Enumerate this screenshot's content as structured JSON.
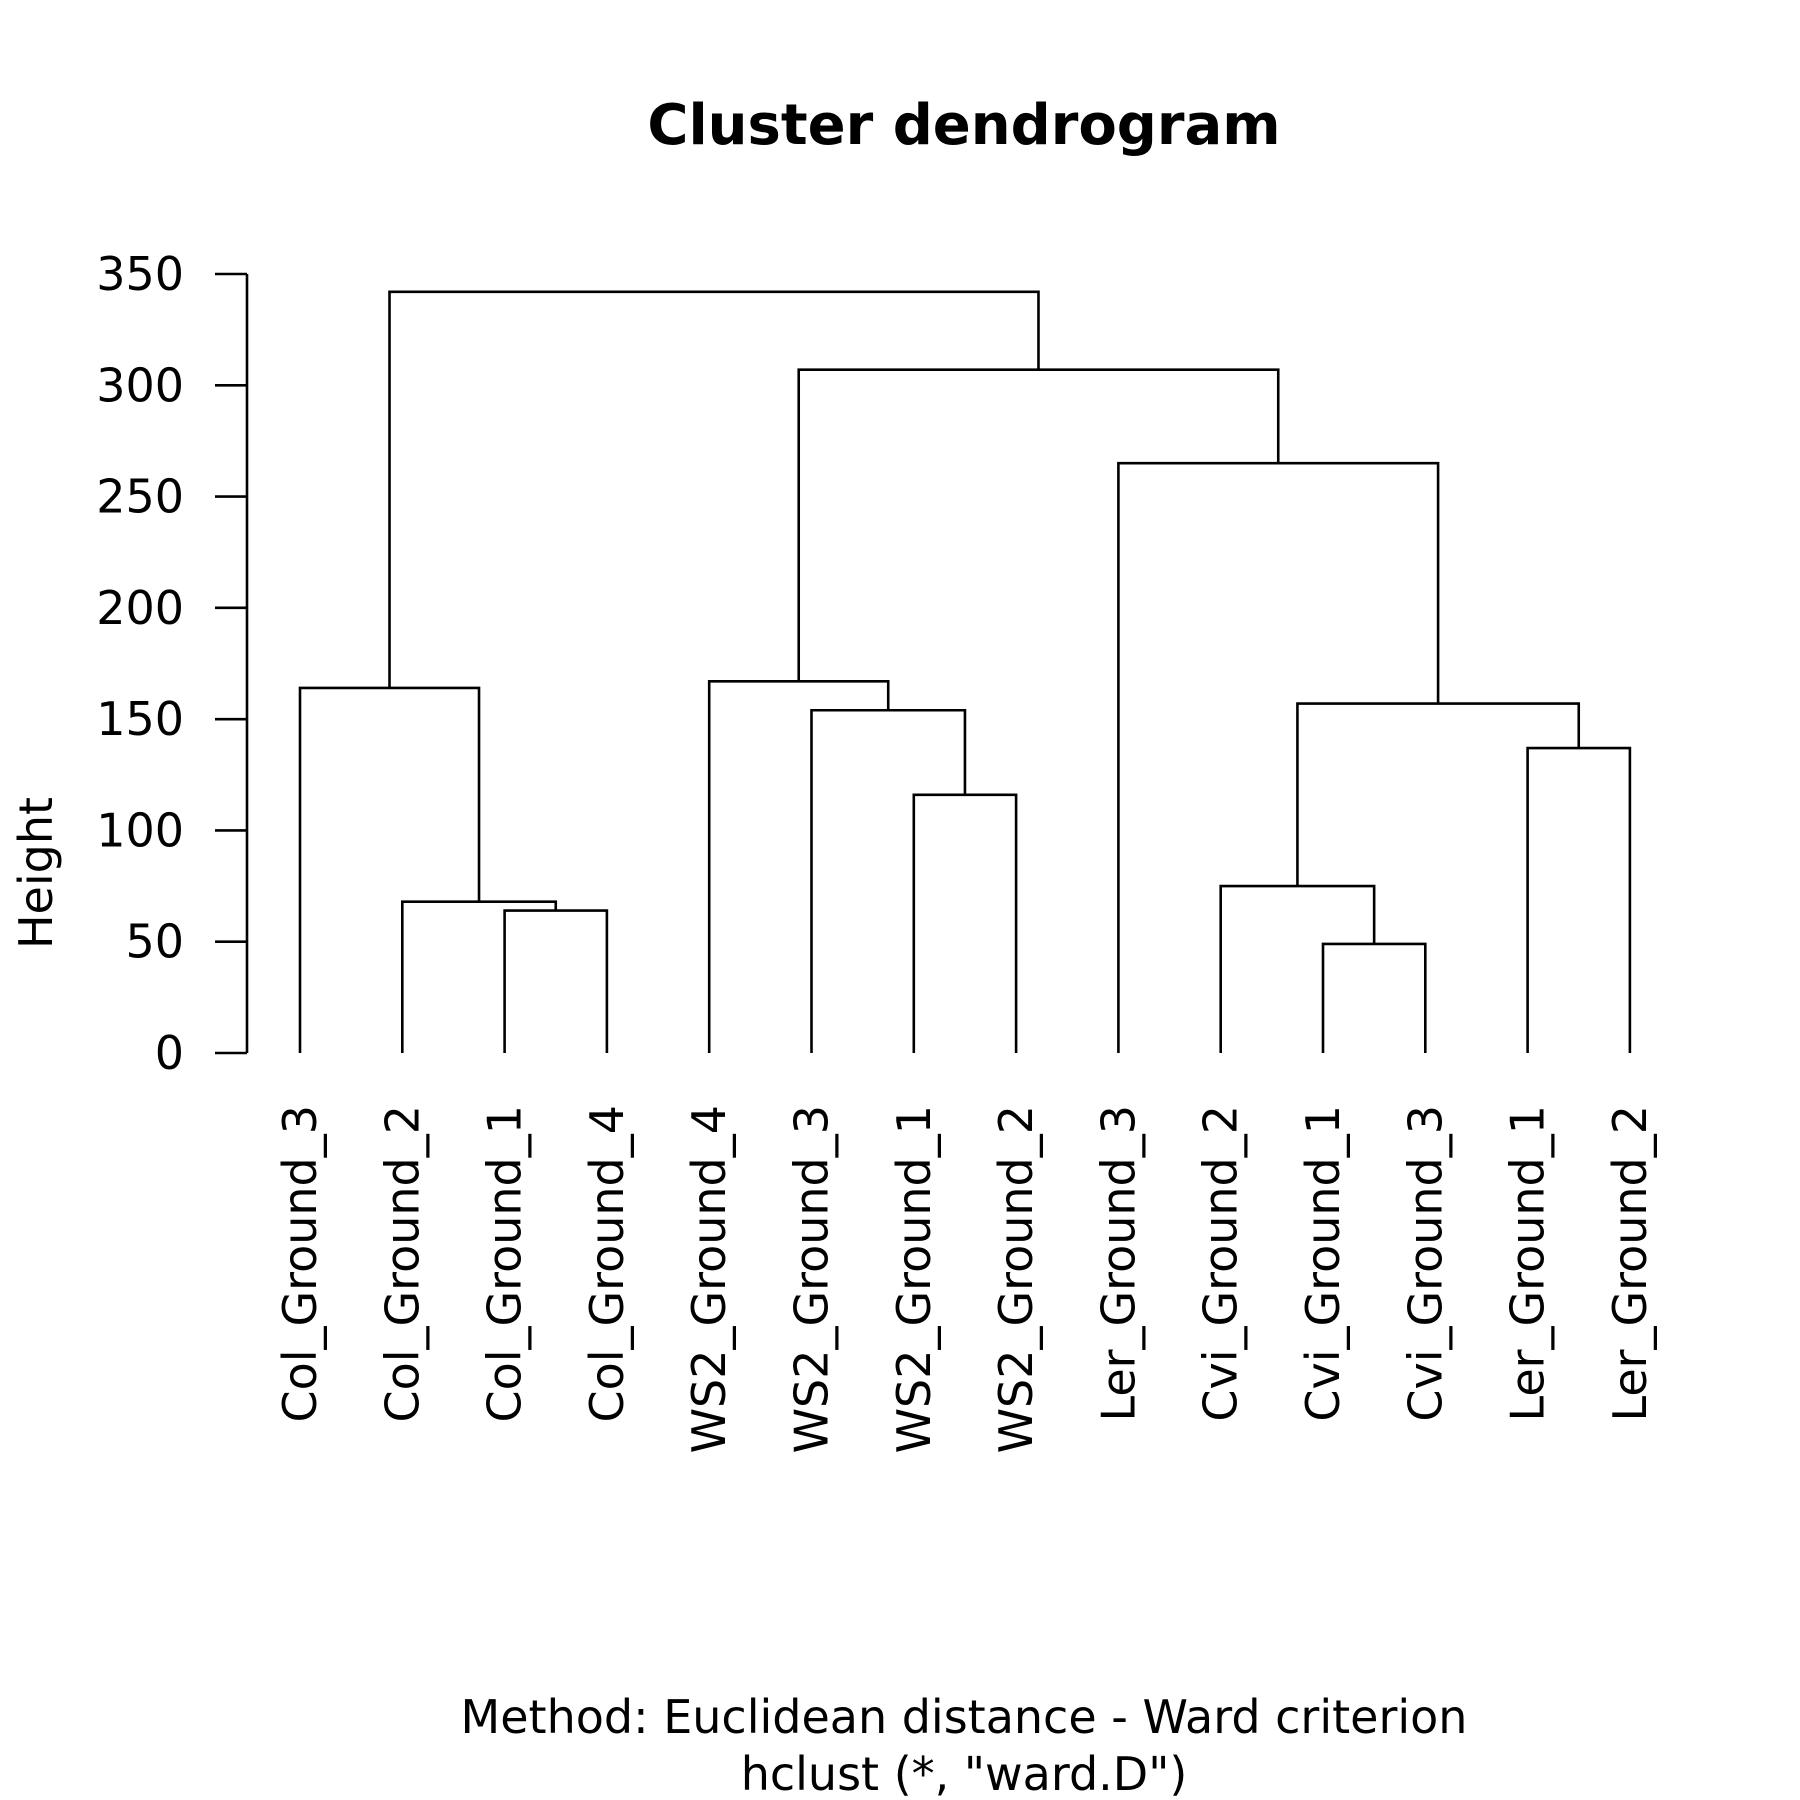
{
  "chart_data": {
    "type": "dendrogram",
    "title": "Cluster dendrogram",
    "ylabel": "Height",
    "xlabel": "Method: Euclidean distance - Ward criterion",
    "sub": "hclust (*, \"ward.D\")",
    "ylim": [
      0,
      350
    ],
    "yticks": [
      0,
      50,
      100,
      150,
      200,
      250,
      300,
      350
    ],
    "leaves": [
      "Col_Ground_3",
      "Col_Ground_2",
      "Col_Ground_1",
      "Col_Ground_4",
      "WS2_Ground_4",
      "WS2_Ground_3",
      "WS2_Ground_1",
      "WS2_Ground_2",
      "Ler_Ground_3",
      "Cvi_Ground_2",
      "Cvi_Ground_1",
      "Cvi_Ground_3",
      "Ler_Ground_1",
      "Ler_Ground_2"
    ],
    "merges": [
      {
        "id": "m1",
        "left": "Cvi_Ground_1",
        "right": "Cvi_Ground_3",
        "height": 49
      },
      {
        "id": "m2",
        "left": "Col_Ground_1",
        "right": "Col_Ground_4",
        "height": 64
      },
      {
        "id": "m3",
        "left": "Col_Ground_2",
        "right": "m2",
        "height": 68
      },
      {
        "id": "m4",
        "left": "Cvi_Ground_2",
        "right": "m1",
        "height": 75
      },
      {
        "id": "m5",
        "left": "WS2_Ground_1",
        "right": "WS2_Ground_2",
        "height": 116
      },
      {
        "id": "m6",
        "left": "Ler_Ground_1",
        "right": "Ler_Ground_2",
        "height": 137
      },
      {
        "id": "m7",
        "left": "WS2_Ground_3",
        "right": "m5",
        "height": 154
      },
      {
        "id": "m8",
        "left": "m4",
        "right": "m6",
        "height": 157
      },
      {
        "id": "m9",
        "left": "Col_Ground_3",
        "right": "m3",
        "height": 164
      },
      {
        "id": "m10",
        "left": "WS2_Ground_4",
        "right": "m7",
        "height": 167
      },
      {
        "id": "m11",
        "left": "Ler_Ground_3",
        "right": "m8",
        "height": 265
      },
      {
        "id": "m12",
        "left": "m10",
        "right": "m11",
        "height": 307
      },
      {
        "id": "m13",
        "left": "m9",
        "right": "m12",
        "height": 342
      }
    ]
  }
}
